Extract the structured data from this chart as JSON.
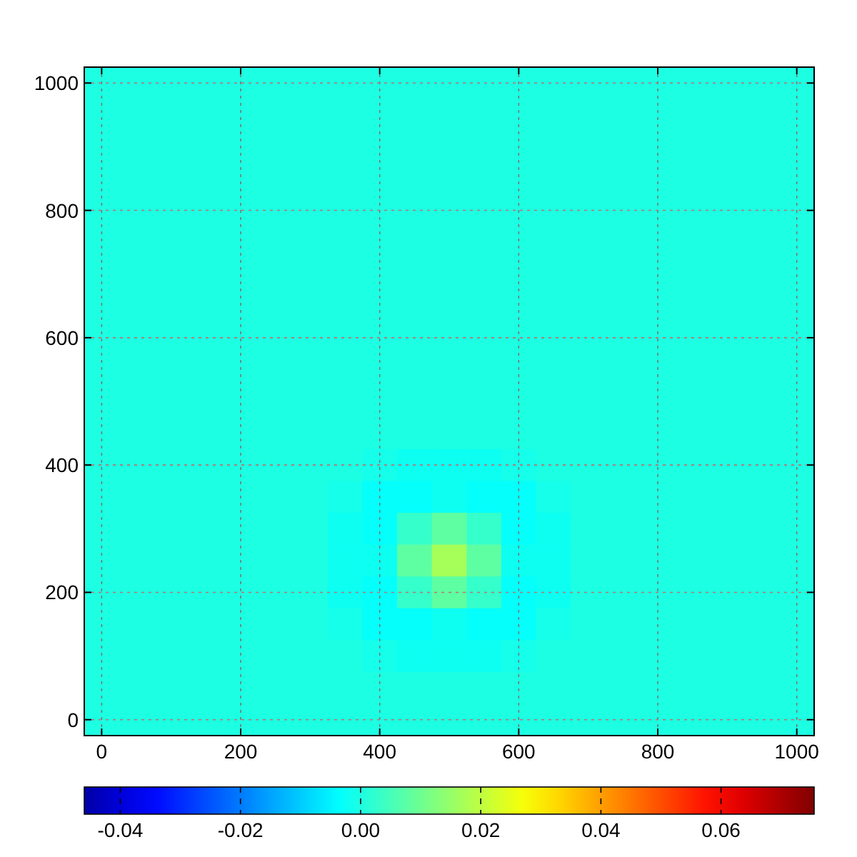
{
  "chart_data": {
    "type": "heatmap",
    "categories": [
      "0",
      null,
      null,
      null,
      "200",
      null,
      null,
      null,
      "400",
      null,
      null,
      null,
      "600",
      null,
      null,
      null,
      "800",
      null,
      null,
      null,
      "1000"
    ],
    "y_categories": [
      "1000",
      null,
      null,
      null,
      "800",
      null,
      null,
      null,
      "600",
      null,
      null,
      null,
      "400",
      null,
      null,
      null,
      "200",
      null,
      null,
      null,
      "0"
    ],
    "clim": [
      -0.046,
      0.0755
    ],
    "cticks": [
      {
        "value": -0.04,
        "label": "-0.04"
      },
      {
        "value": -0.02,
        "label": "-0.02"
      },
      {
        "value": 0,
        "label": "0.00"
      },
      {
        "value": 0.02,
        "label": "0.02"
      },
      {
        "value": 0.04,
        "label": "0.04"
      },
      {
        "value": 0.06,
        "label": "0.06"
      }
    ],
    "grid": true,
    "cells": [
      [
        0,
        0,
        0,
        0,
        0,
        0,
        0,
        0,
        0,
        0,
        0,
        0,
        0,
        0,
        0,
        0,
        0,
        0,
        0,
        0,
        0
      ],
      [
        0,
        0,
        0,
        0,
        0,
        0,
        0,
        0,
        0,
        0,
        0,
        0,
        0,
        0,
        0,
        0,
        0,
        0,
        0,
        0,
        0
      ],
      [
        0,
        0,
        0,
        0,
        0,
        0,
        0,
        0,
        0,
        0,
        0,
        0,
        0,
        0,
        0,
        0,
        0,
        0,
        0,
        0,
        0
      ],
      [
        0,
        0,
        0,
        0,
        0,
        0,
        0,
        0,
        0,
        0,
        0,
        0,
        0,
        0,
        0,
        0,
        0,
        0,
        0,
        0,
        0
      ],
      [
        0,
        0,
        0,
        0,
        0,
        0,
        0,
        0,
        0,
        0,
        0,
        0,
        0,
        0,
        0,
        0,
        0,
        0,
        0,
        0,
        0
      ],
      [
        0,
        0,
        0,
        0,
        0,
        0,
        0,
        0,
        0,
        0,
        0,
        0,
        0,
        0,
        0,
        0,
        0,
        0,
        0,
        0,
        0
      ],
      [
        0,
        0,
        0,
        0,
        0,
        0,
        0,
        0,
        0,
        0,
        0,
        0,
        0,
        0,
        0,
        0,
        0,
        0,
        0,
        0,
        0
      ],
      [
        0,
        0,
        0,
        0,
        0,
        0,
        0,
        0,
        0,
        0,
        0,
        0,
        0,
        0,
        0,
        0,
        0,
        0,
        0,
        0,
        0
      ],
      [
        0,
        0,
        0,
        0,
        0,
        0,
        0,
        0,
        0,
        0,
        0,
        0,
        0,
        0,
        0,
        0,
        0,
        0,
        0,
        0,
        0
      ],
      [
        0,
        0,
        0,
        0,
        0,
        0,
        0,
        0,
        0,
        0,
        0,
        0,
        0,
        0,
        0,
        0,
        0,
        0,
        0,
        0,
        0
      ],
      [
        0,
        0,
        0,
        0,
        0,
        0,
        0,
        0,
        0,
        0,
        0,
        0,
        0,
        0,
        0,
        0,
        0,
        0,
        0,
        0,
        0
      ],
      [
        0,
        0,
        0,
        0,
        0,
        0,
        0,
        0,
        0,
        0,
        0,
        0,
        0,
        0,
        0,
        0,
        0,
        0,
        0,
        0,
        0
      ],
      [
        0,
        0,
        0,
        0,
        0,
        0,
        0,
        0,
        -0.001,
        -0.002,
        -0.002,
        -0.002,
        -0.001,
        0,
        0,
        0,
        0,
        0,
        0,
        0,
        0
      ],
      [
        0,
        0,
        0,
        0,
        0,
        0,
        0,
        -0.001,
        -0.003,
        -0.003,
        -0.002,
        -0.003,
        -0.003,
        -0.001,
        0,
        0,
        0,
        0,
        0,
        0,
        0
      ],
      [
        0,
        0,
        0,
        0,
        0,
        0,
        0,
        -0.002,
        -0.003,
        0.003,
        0.008,
        0.003,
        -0.003,
        -0.002,
        0,
        0,
        0,
        0,
        0,
        0,
        0
      ],
      [
        0,
        0,
        0,
        0,
        0,
        0,
        0,
        -0.002,
        -0.002,
        0.008,
        0.017,
        0.008,
        -0.002,
        -0.002,
        0,
        0,
        0,
        0,
        0,
        0,
        0
      ],
      [
        0,
        0,
        0,
        0,
        0,
        0,
        0,
        -0.002,
        -0.003,
        0.003,
        0.008,
        0.003,
        -0.003,
        -0.002,
        0,
        0,
        0,
        0,
        0,
        0,
        0
      ],
      [
        0,
        0,
        0,
        0,
        0,
        0,
        0,
        -0.001,
        -0.003,
        -0.003,
        -0.002,
        -0.003,
        -0.003,
        -0.001,
        0,
        0,
        0,
        0,
        0,
        0,
        0
      ],
      [
        0,
        0,
        0,
        0,
        0,
        0,
        0,
        0,
        -0.001,
        -0.002,
        -0.002,
        -0.002,
        -0.001,
        0,
        0,
        0,
        0,
        0,
        0,
        0,
        0
      ],
      [
        0,
        0,
        0,
        0,
        0,
        0,
        0,
        0,
        0,
        0,
        0,
        0,
        0,
        0,
        0,
        0,
        0,
        0,
        0,
        0,
        0
      ],
      [
        0,
        0,
        0,
        0,
        0,
        0,
        0,
        0,
        0,
        0,
        0,
        0,
        0,
        0,
        0,
        0,
        0,
        0,
        0,
        0,
        0
      ]
    ]
  }
}
